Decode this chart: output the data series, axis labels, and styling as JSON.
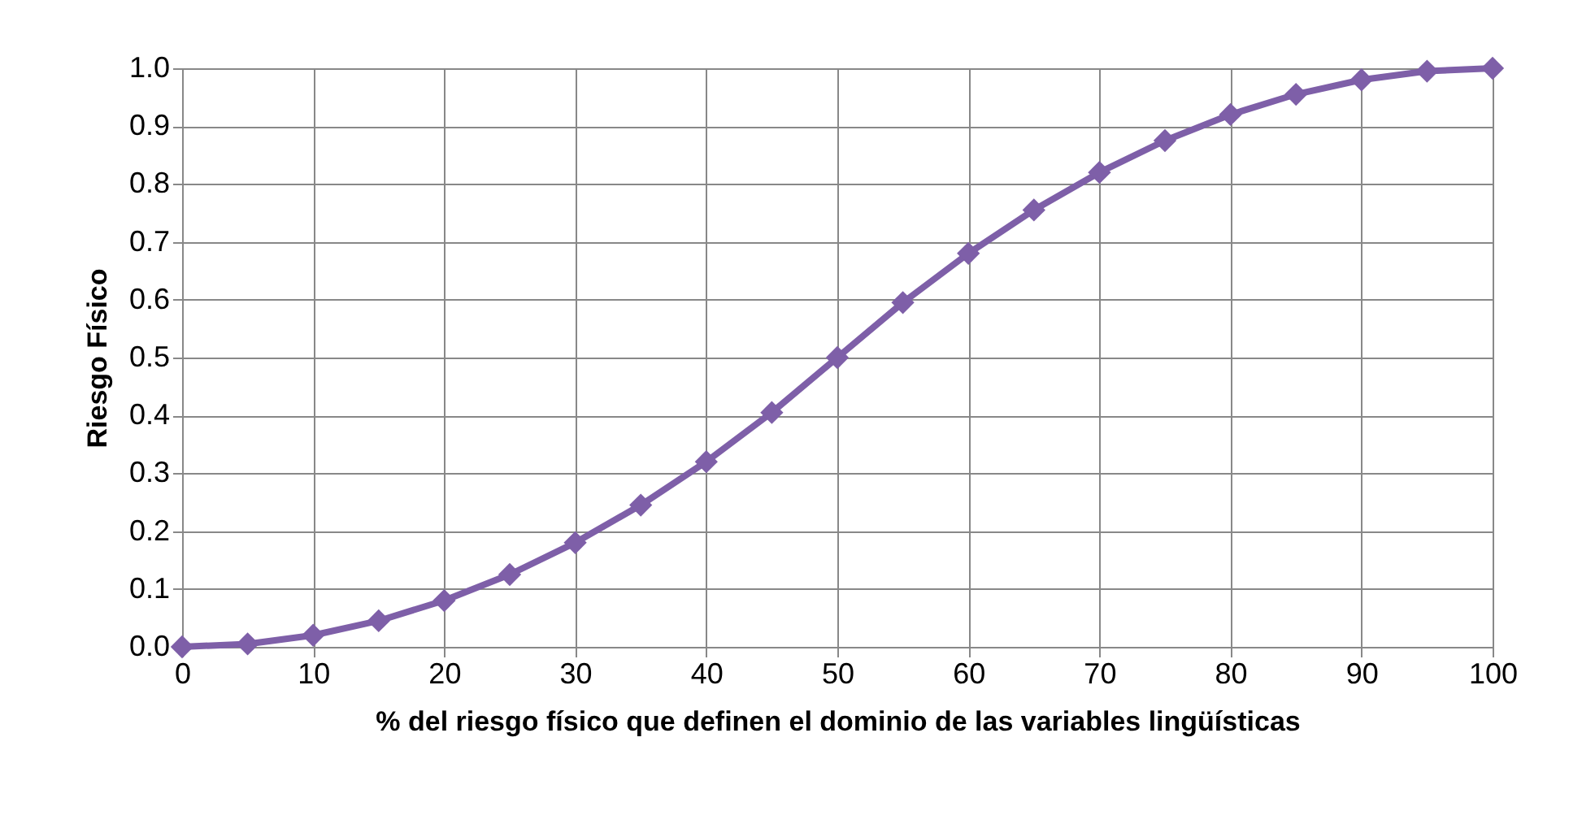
{
  "chart_data": {
    "type": "line",
    "xlabel": "% del riesgo físico que definen el dominio de las variables lingüísticas",
    "ylabel": "Riesgo Físico",
    "x": [
      0,
      5,
      10,
      15,
      20,
      25,
      30,
      35,
      40,
      45,
      50,
      55,
      60,
      65,
      70,
      75,
      80,
      85,
      90,
      95,
      100
    ],
    "series": [
      {
        "color": "#7e5fa8",
        "values": [
          0,
          0.005,
          0.02,
          0.045,
          0.08,
          0.125,
          0.18,
          0.245,
          0.32,
          0.405,
          0.5,
          0.595,
          0.68,
          0.755,
          0.82,
          0.875,
          0.92,
          0.955,
          0.98,
          0.995,
          1.0
        ]
      }
    ],
    "xlim": [
      0,
      100
    ],
    "ylim": [
      0,
      1
    ],
    "xticks": [
      0,
      10,
      20,
      30,
      40,
      50,
      60,
      70,
      80,
      90,
      100
    ],
    "yticks": [
      {
        "value": 0,
        "label": "0.0"
      },
      {
        "value": 0.1,
        "label": "0.1"
      },
      {
        "value": 0.2,
        "label": "0.2"
      },
      {
        "value": 0.3,
        "label": "0.3"
      },
      {
        "value": 0.4,
        "label": "0.4"
      },
      {
        "value": 0.5,
        "label": "0.5"
      },
      {
        "value": 0.6,
        "label": "0.6"
      },
      {
        "value": 0.7,
        "label": "0.7"
      },
      {
        "value": 0.8,
        "label": "0.8"
      },
      {
        "value": 0.9,
        "label": "0.9"
      },
      {
        "value": 1,
        "label": "1.0"
      }
    ],
    "grid": true,
    "marker": "diamond",
    "line_style": "solid"
  }
}
